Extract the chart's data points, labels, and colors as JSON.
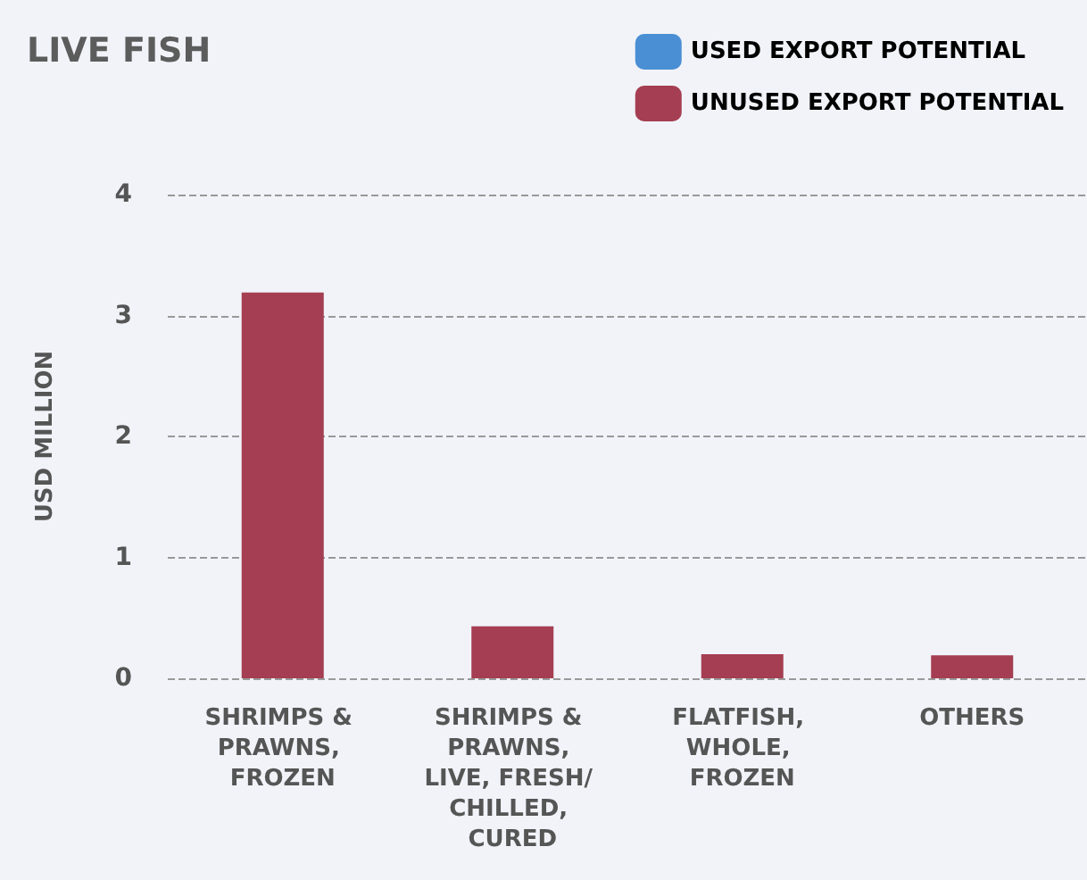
{
  "chart_data": {
    "type": "bar",
    "title": "LIVE FISH",
    "ylabel": "USD MILLION",
    "categories": [
      "SHRIMPS & PRAWNS, FROZEN",
      "SHRIMPS & PRAWNS, LIVE, FRESH/ CHILLED, CURED",
      "FLATFISH, WHOLE, FROZEN",
      "OTHERS"
    ],
    "series": [
      {
        "name": "USED EXPORT POTENTIAL",
        "color": "#4a8fd4",
        "values": [
          0,
          0,
          0,
          0
        ]
      },
      {
        "name": "UNUSED EXPORT POTENTIAL",
        "color": "#a53e52",
        "values": [
          3.19,
          0.43,
          0.2,
          0.19
        ]
      }
    ],
    "stacked": true,
    "ylim": [
      0,
      4
    ],
    "yticks": [
      0,
      1,
      2,
      3,
      4
    ],
    "grid": "y",
    "legend": "top right"
  }
}
